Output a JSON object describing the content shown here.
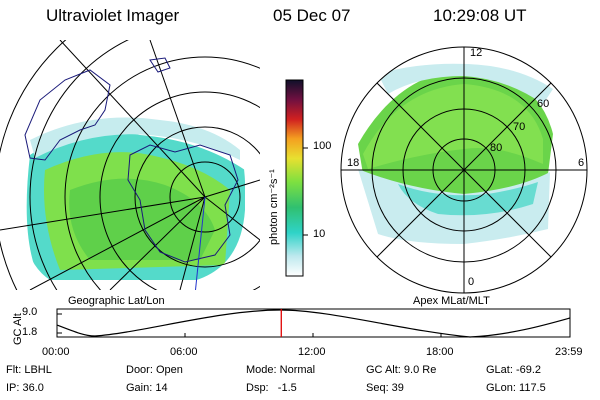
{
  "header": {
    "instrument": "Ultraviolet Imager",
    "date": "05 Dec 07",
    "time": "10:29:08 UT"
  },
  "left_panel": {
    "caption": "Geographic Lat/Lon"
  },
  "right_panel": {
    "caption": "Apex MLat/MLT",
    "mlt_labels": {
      "top": "12",
      "bottom": "0",
      "left": "18",
      "right": "6"
    },
    "lat_labels": [
      "60",
      "70",
      "80"
    ]
  },
  "colorbar": {
    "unit_label": "photon cm⁻²s⁻¹",
    "ticks": [
      "100",
      "10"
    ]
  },
  "orbit": {
    "y_axis_label": "GC Alt",
    "y_ticks": [
      "9.0",
      "1.8"
    ],
    "x_ticks": [
      "00:00",
      "06:00",
      "12:00",
      "18:00",
      "23:59"
    ],
    "marker_time_hours": 10.485
  },
  "footer": {
    "flt": "Flt: LBHL",
    "ip": "IP: 36.0",
    "door": "Door: Open",
    "gain": "Gain: 14",
    "mode": "Mode: Normal",
    "dsp": "Dsp:   -1.5",
    "gc_alt": "GC Alt: 9.0 Re",
    "seq": "Seq: 39",
    "glat": "GLat: -69.2",
    "glon": "GLon: 117.5"
  },
  "colors": {
    "line": "#000000",
    "marker": "#e00000",
    "coastline": "#1a1a7a"
  }
}
